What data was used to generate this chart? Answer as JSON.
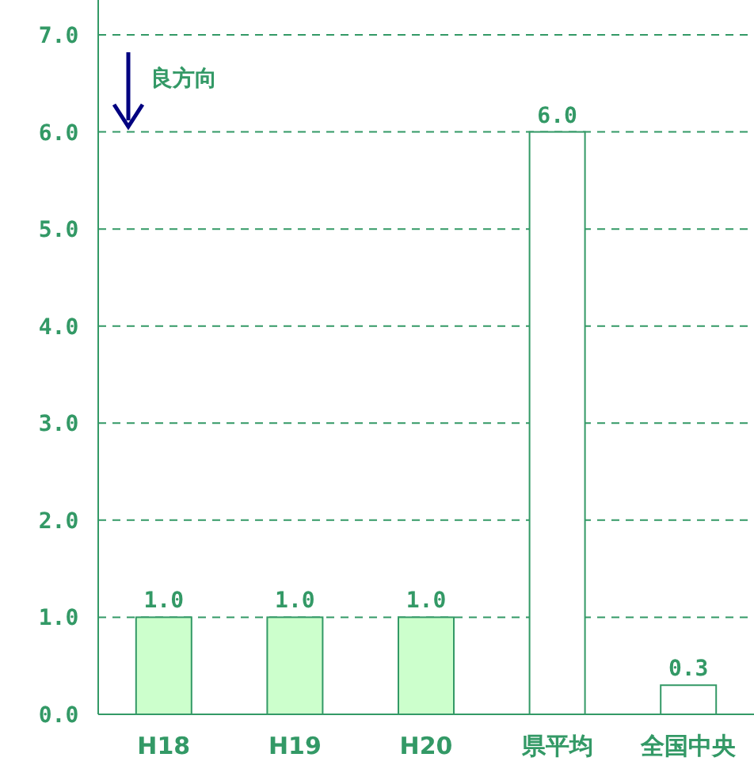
{
  "chart_data": {
    "type": "bar",
    "categories": [
      "H18",
      "H19",
      "H20",
      "県平均",
      "全国中央"
    ],
    "values": [
      1.0,
      1.0,
      1.0,
      6.0,
      0.3
    ],
    "colors": [
      "#ccffcc",
      "#ccffcc",
      "#ccffcc",
      "#ffffff",
      "#ffffff"
    ],
    "ylim": [
      0,
      7
    ],
    "yticks": [
      {
        "value": 0,
        "label": "0.0"
      },
      {
        "value": 1,
        "label": "1.0"
      },
      {
        "value": 2,
        "label": "2.0"
      },
      {
        "value": 3,
        "label": "3.0"
      },
      {
        "value": 4,
        "label": "4.0"
      },
      {
        "value": 5,
        "label": "5.0"
      },
      {
        "value": 6,
        "label": "6.0"
      },
      {
        "value": 7,
        "label": "7.0"
      }
    ],
    "grid": "y",
    "value_labels": [
      "1.0",
      "1.0",
      "1.0",
      "6.0",
      "0.3"
    ],
    "annotations": [
      "良方向"
    ]
  }
}
